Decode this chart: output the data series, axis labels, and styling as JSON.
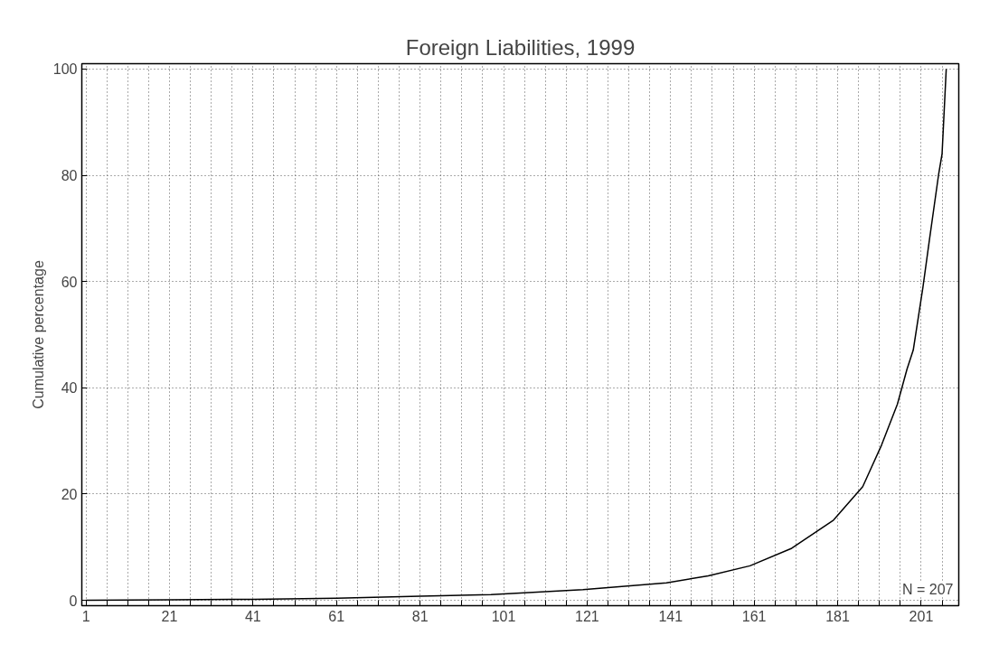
{
  "chart_data": {
    "type": "line",
    "title": "Foreign Liabilities, 1999",
    "ylabel": "Cumulative percentage",
    "x": [
      1,
      21,
      41,
      61,
      81,
      98,
      120,
      140,
      150,
      160,
      170,
      180,
      187,
      191.5,
      195.3,
      197.6,
      199.1,
      201.4,
      203,
      205.2,
      206,
      207
    ],
    "series": [
      {
        "color": "#000000",
        "values": [
          0,
          0.1,
          0.2,
          0.4,
          0.8,
          1.1,
          2.0,
          3.3,
          4.6,
          6.5,
          9.8,
          15.1,
          21.4,
          29.2,
          36.9,
          43.5,
          47.1,
          58.8,
          68,
          80.3,
          84,
          100
        ]
      }
    ],
    "xlim": [
      0,
      210
    ],
    "ylim": [
      -1,
      101
    ],
    "xticks": [
      1,
      {
        "value": 6,
        "label": null
      },
      {
        "value": 11,
        "label": null
      },
      {
        "value": 16,
        "label": null
      },
      21,
      {
        "value": 26,
        "label": null
      },
      {
        "value": 31,
        "label": null
      },
      {
        "value": 36,
        "label": null
      },
      41,
      {
        "value": 46,
        "label": null
      },
      {
        "value": 51,
        "label": null
      },
      {
        "value": 56,
        "label": null
      },
      61,
      {
        "value": 66,
        "label": null
      },
      {
        "value": 71,
        "label": null
      },
      {
        "value": 76,
        "label": null
      },
      81,
      {
        "value": 86,
        "label": null
      },
      {
        "value": 91,
        "label": null
      },
      {
        "value": 96,
        "label": null
      },
      101,
      {
        "value": 106,
        "label": null
      },
      {
        "value": 111,
        "label": null
      },
      {
        "value": 116,
        "label": null
      },
      121,
      {
        "value": 126,
        "label": null
      },
      {
        "value": 131,
        "label": null
      },
      {
        "value": 136,
        "label": null
      },
      141,
      {
        "value": 146,
        "label": null
      },
      {
        "value": 151,
        "label": null
      },
      {
        "value": 156,
        "label": null
      },
      161,
      {
        "value": 166,
        "label": null
      },
      {
        "value": 171,
        "label": null
      },
      {
        "value": 176,
        "label": null
      },
      181,
      {
        "value": 186,
        "label": null
      },
      {
        "value": 191,
        "label": null
      },
      {
        "value": 196,
        "label": null
      },
      201,
      {
        "value": 206,
        "label": null
      }
    ],
    "yticks": [
      0,
      20,
      40,
      60,
      80,
      100
    ],
    "grid": true,
    "marker": "none",
    "line_style": "solid",
    "annotations": [
      "N = 207"
    ]
  }
}
